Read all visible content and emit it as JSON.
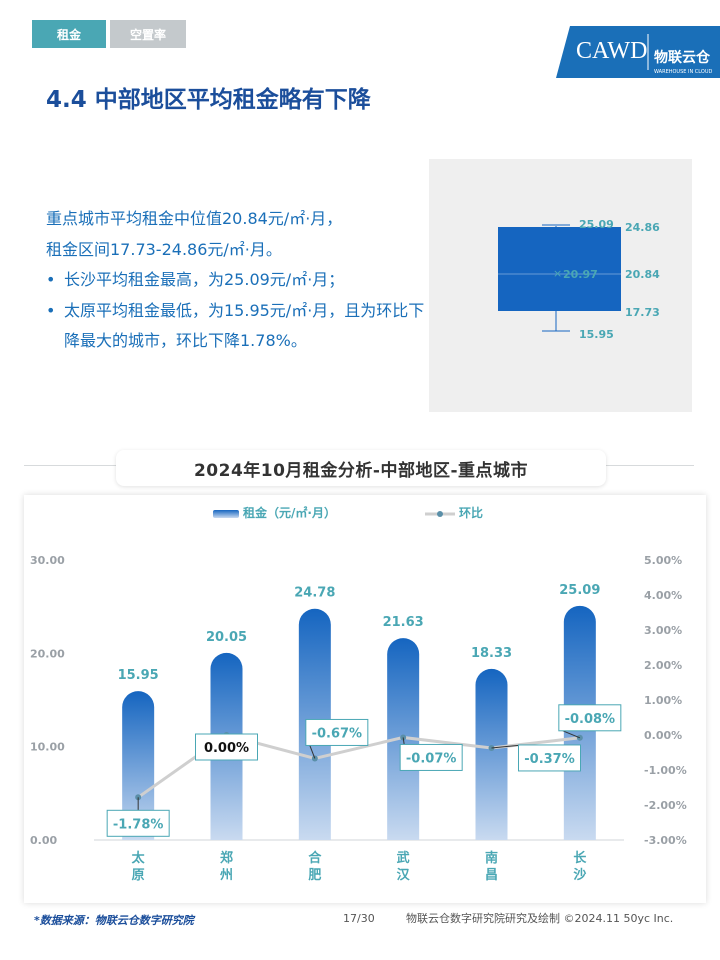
{
  "header": {
    "tabs": [
      {
        "label": "租金"
      },
      {
        "label": "空置率"
      }
    ],
    "title": "4.4 中部地区平均租金略有下降",
    "logo": {
      "brand": "CAWD",
      "name": "物联云仓",
      "sub": "WAREHOUSE IN CLOUD",
      "accent": "#1a6fb8"
    }
  },
  "summary": {
    "lines": [
      "重点城市平均租金中位值20.84元/㎡·月，",
      "租金区间17.73-24.86元/㎡·月。"
    ],
    "bullets": [
      "长沙平均租金最高，为25.09元/㎡·月；",
      "太原平均租金最低，为15.95元/㎡·月，且为环比下降最大的城市，环比下降1.78%。"
    ]
  },
  "boxplot": {
    "max": "25.09",
    "q3": "24.86",
    "mean": "20.97",
    "median": "20.84",
    "q1": "17.73",
    "min": "15.95",
    "color": "#1565c0"
  },
  "section": {
    "title": "2024年10月租金分析-中部地区-重点城市"
  },
  "chart_data": {
    "type": "bar",
    "categories": [
      "太原",
      "郑州",
      "合肥",
      "武汉",
      "南昌",
      "长沙"
    ],
    "series": [
      {
        "name": "租金（元/㎡·月）",
        "type": "bar",
        "axis": "left",
        "values": [
          15.95,
          20.05,
          24.78,
          21.63,
          18.33,
          25.09
        ],
        "labels": [
          "15.95",
          "20.05",
          "24.78",
          "21.63",
          "18.33",
          "25.09"
        ]
      },
      {
        "name": "环比",
        "type": "line",
        "axis": "right",
        "values": [
          -1.78,
          0.0,
          -0.67,
          -0.07,
          -0.37,
          -0.08
        ],
        "labels": [
          "-1.78%",
          "0.00%",
          "-0.67%",
          "-0.07%",
          "-0.37%",
          "-0.08%"
        ]
      }
    ],
    "y_left": {
      "lim": [
        0,
        30
      ],
      "ticks": [
        "0.00",
        "10.00",
        "20.00",
        "30.00"
      ]
    },
    "y_right": {
      "lim": [
        -3,
        5
      ],
      "ticks": [
        "-3.00%",
        "-2.00%",
        "-1.00%",
        "0.00%",
        "1.00%",
        "2.00%",
        "3.00%",
        "4.00%",
        "5.00%"
      ]
    },
    "legend": "top-center",
    "grid": false,
    "colors": {
      "bar_top": "#1565c0",
      "bar_bottom": "#c9daf0",
      "line": "#cfcfcf",
      "marker": "#5a8fa8",
      "label": "#4aa7b4",
      "axis": "#9aa0a6"
    }
  },
  "footer": {
    "source": "*数据来源：物联云仓数字研究院",
    "page": "17/30",
    "copyright": "物联云仓数字研究院研究及绘制   ©2024.11 50yc Inc."
  }
}
